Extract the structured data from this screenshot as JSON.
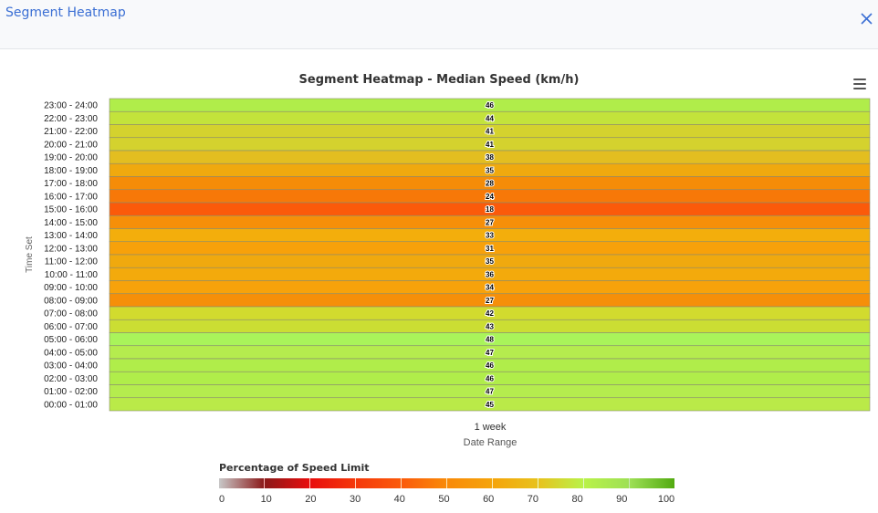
{
  "modal": {
    "title": "Segment Heatmap",
    "close_icon": "close-icon"
  },
  "menu_icon": "hamburger-menu-icon",
  "chart_data": {
    "type": "heatmap",
    "title": "Segment Heatmap - Median Speed (km/h)",
    "ylabel": "Time Set",
    "xlabel": "Date Range",
    "x_categories": [
      "1 week"
    ],
    "y_categories": [
      "23:00 - 24:00",
      "22:00 - 23:00",
      "21:00 - 22:00",
      "20:00 - 21:00",
      "19:00 - 20:00",
      "18:00 - 19:00",
      "17:00 - 18:00",
      "16:00 - 17:00",
      "15:00 - 16:00",
      "14:00 - 15:00",
      "13:00 - 14:00",
      "12:00 - 13:00",
      "11:00 - 12:00",
      "10:00 - 11:00",
      "09:00 - 10:00",
      "08:00 - 09:00",
      "07:00 - 08:00",
      "06:00 - 07:00",
      "05:00 - 06:00",
      "04:00 - 05:00",
      "03:00 - 04:00",
      "02:00 - 03:00",
      "01:00 - 02:00",
      "00:00 - 01:00"
    ],
    "values": [
      46,
      44,
      41,
      41,
      38,
      35,
      28,
      24,
      18,
      27,
      33,
      31,
      35,
      36,
      34,
      27,
      42,
      43,
      48,
      47,
      46,
      46,
      47,
      45
    ],
    "colors": [
      "#b0ed4a",
      "#c3e33b",
      "#d4d22e",
      "#d4d22e",
      "#e3be20",
      "#f0a90e",
      "#f58c08",
      "#f77808",
      "#fb5a0a",
      "#f68f09",
      "#f3ae0c",
      "#f7a10a",
      "#f0a90e",
      "#f3aa0c",
      "#f7a20b",
      "#f68f09",
      "#d2db2e",
      "#cbde33",
      "#a9f45a",
      "#b5ec4e",
      "#b0ed4a",
      "#b0ed4a",
      "#b5ec4e",
      "#baea48"
    ],
    "legend": {
      "title": "Percentage of Speed Limit",
      "ticks": [
        0,
        10,
        20,
        30,
        40,
        50,
        60,
        70,
        80,
        90,
        100
      ],
      "stops": [
        "#c8c8c8",
        "#8b1a1a",
        "#e80d0d",
        "#f5380a",
        "#fb5a0a",
        "#f98a09",
        "#f5a40a",
        "#e8c21c",
        "#b9f249",
        "#9ee055",
        "#52aa10"
      ]
    }
  }
}
